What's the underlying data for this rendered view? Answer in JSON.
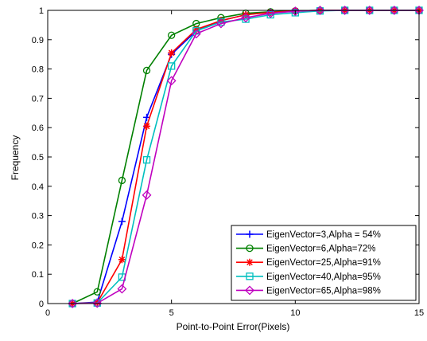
{
  "chart_data": {
    "type": "line",
    "title": "",
    "xlabel": "Point-to-Point Error(Pixels)",
    "ylabel": "Frequency",
    "xlim": [
      0,
      15
    ],
    "ylim": [
      0,
      1
    ],
    "xticks": [
      0,
      5,
      10,
      15
    ],
    "yticks": [
      0,
      0.1,
      0.2,
      0.3,
      0.4,
      0.5,
      0.6,
      0.7,
      0.8,
      0.9,
      1
    ],
    "xtick_labels": [
      "0",
      "5",
      "10",
      "15"
    ],
    "ytick_labels": [
      "0",
      "0.1",
      "0.2",
      "0.3",
      "0.4",
      "0.5",
      "0.6",
      "0.7",
      "0.8",
      "0.9",
      "1"
    ],
    "grid": false,
    "legend_position": "bottom-right",
    "x": [
      1,
      2,
      3,
      4,
      5,
      6,
      7,
      8,
      9,
      10,
      11,
      12,
      13,
      14,
      15
    ],
    "series": [
      {
        "name": "EigenVector=3,Alpha = 54%",
        "color": "#0000ff",
        "marker": "plus",
        "values": [
          0,
          0.005,
          0.28,
          0.635,
          0.85,
          0.93,
          0.965,
          0.985,
          0.995,
          0.998,
          1,
          1,
          1,
          1,
          1
        ]
      },
      {
        "name": "EigenVector=6,Alpha=72%",
        "color": "#008000",
        "marker": "circle",
        "values": [
          0,
          0.04,
          0.42,
          0.795,
          0.915,
          0.955,
          0.975,
          0.99,
          0.995,
          0.998,
          1,
          1,
          1,
          1,
          1
        ]
      },
      {
        "name": "EigenVector=25,Alpha=91%",
        "color": "#ff0000",
        "marker": "star",
        "values": [
          0,
          0.003,
          0.15,
          0.605,
          0.855,
          0.935,
          0.965,
          0.985,
          0.993,
          0.998,
          1,
          1,
          1,
          1,
          1
        ]
      },
      {
        "name": "EigenVector=40,Alpha=95%",
        "color": "#00bfbf",
        "marker": "square",
        "values": [
          0,
          0.002,
          0.09,
          0.49,
          0.81,
          0.93,
          0.96,
          0.97,
          0.985,
          0.992,
          0.998,
          1,
          1,
          1,
          1
        ]
      },
      {
        "name": "EigenVector=65,Alpha=98%",
        "color": "#bf00bf",
        "marker": "diamond",
        "values": [
          0,
          0.001,
          0.05,
          0.37,
          0.76,
          0.92,
          0.955,
          0.975,
          0.99,
          0.997,
          1,
          1,
          1,
          1,
          1
        ]
      }
    ]
  }
}
